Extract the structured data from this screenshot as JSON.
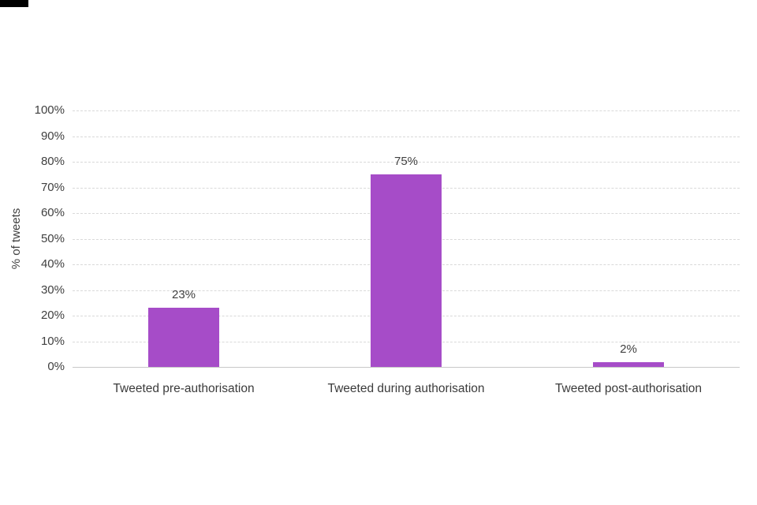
{
  "chart_data": {
    "type": "bar",
    "categories": [
      "Tweeted pre-authorisation",
      "Tweeted during authorisation",
      "Tweeted post-authorisation"
    ],
    "values": [
      23,
      75,
      2
    ],
    "labels": [
      "23%",
      "75%",
      "2%"
    ],
    "title": "",
    "xlabel": "",
    "ylabel": "% of tweets",
    "ylim": [
      0,
      100
    ],
    "ytick_step": 10,
    "ytick_suffix": "%",
    "bar_color": "#a64cc8",
    "grid": "horizontal-dashed",
    "legend": "none"
  }
}
